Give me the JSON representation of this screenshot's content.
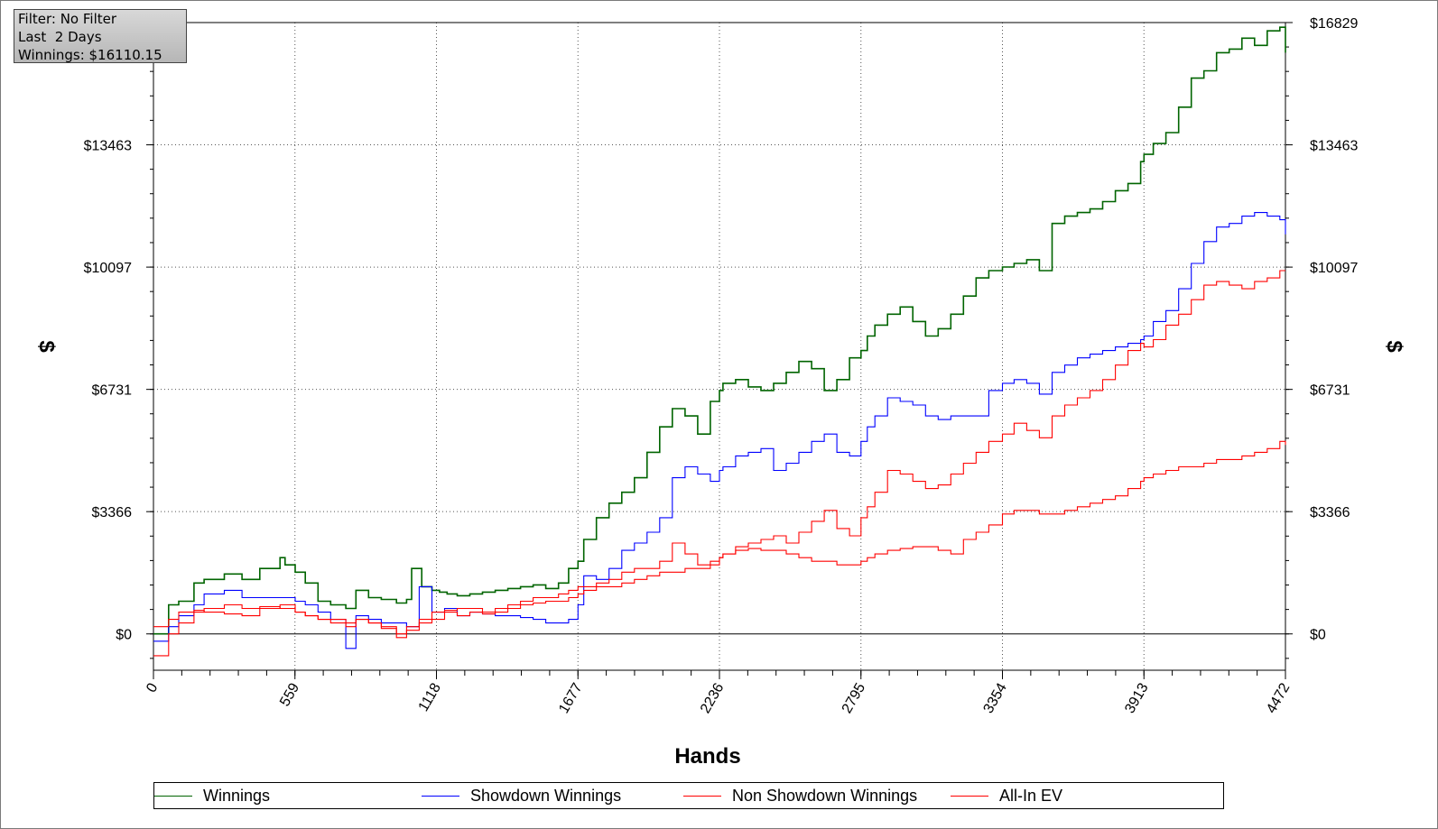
{
  "filter_box": {
    "line1": "Filter: No Filter",
    "line2": "Last  2 Days",
    "line3": "Winnings: $16110.15"
  },
  "chart_data": {
    "type": "line",
    "title": "",
    "xlabel": "Hands",
    "ylabel": "$",
    "xlim": [
      0,
      4472
    ],
    "ylim": [
      -1000,
      16829
    ],
    "x_ticks": [
      "0",
      "559",
      "1118",
      "1677",
      "2236",
      "2795",
      "3354",
      "3913",
      "4472"
    ],
    "y_ticks": [
      "$0",
      "$3366",
      "$6731",
      "$10097",
      "$13463",
      "$16829"
    ],
    "grid": true,
    "legend_placement": "bottom",
    "series": [
      {
        "name": "Winnings",
        "color": "#006400",
        "x": [
          0,
          60,
          100,
          160,
          200,
          280,
          350,
          420,
          500,
          520,
          560,
          600,
          650,
          700,
          760,
          800,
          850,
          900,
          960,
          1000,
          1020,
          1060,
          1100,
          1130,
          1160,
          1200,
          1250,
          1300,
          1350,
          1400,
          1450,
          1500,
          1550,
          1600,
          1640,
          1677,
          1700,
          1750,
          1800,
          1850,
          1900,
          1950,
          2000,
          2050,
          2100,
          2150,
          2200,
          2236,
          2250,
          2300,
          2350,
          2400,
          2450,
          2500,
          2550,
          2600,
          2650,
          2700,
          2750,
          2795,
          2820,
          2850,
          2900,
          2950,
          3000,
          3050,
          3100,
          3150,
          3200,
          3250,
          3300,
          3354,
          3400,
          3450,
          3500,
          3550,
          3600,
          3650,
          3700,
          3750,
          3800,
          3850,
          3900,
          3913,
          3950,
          4000,
          4050,
          4100,
          4150,
          4200,
          4250,
          4300,
          4350,
          4400,
          4450,
          4472
        ],
        "values": [
          0,
          800,
          900,
          1400,
          1500,
          1650,
          1500,
          1800,
          2100,
          1900,
          1700,
          1400,
          900,
          800,
          700,
          1200,
          1000,
          950,
          850,
          950,
          1800,
          1300,
          1200,
          1150,
          1100,
          1050,
          1100,
          1150,
          1200,
          1250,
          1300,
          1350,
          1250,
          1400,
          1800,
          2000,
          2600,
          3200,
          3600,
          3900,
          4300,
          5000,
          5700,
          6200,
          6000,
          5500,
          6400,
          6700,
          6900,
          7000,
          6800,
          6700,
          6900,
          7200,
          7500,
          7300,
          6700,
          7000,
          7600,
          7800,
          8200,
          8500,
          8800,
          9000,
          8600,
          8200,
          8400,
          8800,
          9300,
          9800,
          10000,
          10100,
          10200,
          10300,
          10000,
          11300,
          11500,
          11600,
          11700,
          11900,
          12200,
          12400,
          13000,
          13200,
          13500,
          13800,
          14500,
          15300,
          15500,
          16000,
          16100,
          16400,
          16200,
          16600,
          16700,
          16000
        ]
      },
      {
        "name": "Showdown Winnings",
        "color": "#0000ff",
        "x": [
          0,
          60,
          100,
          160,
          200,
          280,
          350,
          420,
          500,
          560,
          600,
          650,
          700,
          760,
          800,
          850,
          900,
          960,
          1000,
          1050,
          1100,
          1150,
          1200,
          1250,
          1300,
          1350,
          1400,
          1450,
          1500,
          1550,
          1600,
          1640,
          1677,
          1700,
          1750,
          1800,
          1850,
          1900,
          1950,
          2000,
          2050,
          2100,
          2150,
          2200,
          2236,
          2250,
          2300,
          2350,
          2400,
          2450,
          2500,
          2550,
          2600,
          2650,
          2700,
          2750,
          2795,
          2820,
          2850,
          2900,
          2950,
          3000,
          3050,
          3100,
          3150,
          3200,
          3250,
          3300,
          3354,
          3400,
          3450,
          3500,
          3550,
          3600,
          3650,
          3700,
          3750,
          3800,
          3850,
          3900,
          3913,
          3950,
          4000,
          4050,
          4100,
          4150,
          4200,
          4250,
          4300,
          4350,
          4400,
          4450,
          4472
        ],
        "values": [
          -200,
          200,
          500,
          800,
          1100,
          1200,
          1000,
          1000,
          1000,
          900,
          800,
          600,
          400,
          -400,
          500,
          400,
          300,
          300,
          200,
          1300,
          600,
          700,
          500,
          600,
          550,
          500,
          500,
          450,
          400,
          300,
          300,
          400,
          800,
          1600,
          1500,
          1800,
          2300,
          2500,
          2800,
          3200,
          4300,
          4600,
          4400,
          4200,
          4500,
          4600,
          4900,
          5000,
          5100,
          4500,
          4700,
          5000,
          5300,
          5500,
          5000,
          4900,
          5300,
          5700,
          6000,
          6500,
          6400,
          6300,
          6000,
          5900,
          6000,
          6000,
          6000,
          6700,
          6900,
          7000,
          6900,
          6600,
          7200,
          7400,
          7600,
          7700,
          7800,
          7900,
          8000,
          8100,
          8200,
          8600,
          8900,
          9500,
          10200,
          10800,
          11200,
          11300,
          11500,
          11600,
          11500,
          11400,
          11000
        ]
      },
      {
        "name": "Non Showdown Winnings",
        "color": "#ff0000",
        "x": [
          0,
          60,
          100,
          160,
          200,
          280,
          350,
          420,
          500,
          560,
          600,
          650,
          700,
          760,
          800,
          850,
          900,
          960,
          1000,
          1050,
          1100,
          1150,
          1200,
          1250,
          1300,
          1350,
          1400,
          1450,
          1500,
          1550,
          1600,
          1640,
          1677,
          1700,
          1750,
          1800,
          1850,
          1900,
          1950,
          2000,
          2050,
          2100,
          2150,
          2200,
          2236,
          2250,
          2300,
          2350,
          2400,
          2450,
          2500,
          2550,
          2600,
          2650,
          2700,
          2750,
          2795,
          2820,
          2850,
          2900,
          2950,
          3000,
          3050,
          3100,
          3150,
          3200,
          3250,
          3300,
          3354,
          3400,
          3450,
          3500,
          3550,
          3600,
          3650,
          3700,
          3750,
          3800,
          3850,
          3900,
          3913,
          3950,
          4000,
          4050,
          4100,
          4150,
          4200,
          4250,
          4300,
          4350,
          4400,
          4450,
          4472
        ],
        "values": [
          200,
          400,
          600,
          650,
          600,
          550,
          500,
          700,
          800,
          600,
          500,
          400,
          300,
          200,
          400,
          300,
          200,
          -100,
          100,
          300,
          400,
          600,
          500,
          600,
          550,
          700,
          800,
          900,
          1000,
          1000,
          1100,
          1200,
          1300,
          1300,
          1400,
          1500,
          1700,
          1800,
          1800,
          2000,
          2500,
          2200,
          1900,
          2000,
          2100,
          2200,
          2400,
          2500,
          2600,
          2700,
          2500,
          2800,
          3100,
          3400,
          2900,
          2700,
          3200,
          3500,
          3900,
          4500,
          4400,
          4200,
          4000,
          4100,
          4400,
          4700,
          5000,
          5300,
          5500,
          5800,
          5600,
          5400,
          6000,
          6300,
          6500,
          6700,
          7000,
          7400,
          7800,
          8000,
          7900,
          8100,
          8500,
          8800,
          9200,
          9600,
          9700,
          9600,
          9500,
          9700,
          9800,
          10000,
          10000
        ]
      },
      {
        "name": "All-In EV",
        "color": "#ff0000",
        "x": [
          0,
          60,
          100,
          160,
          200,
          280,
          350,
          420,
          500,
          560,
          600,
          650,
          700,
          760,
          800,
          850,
          900,
          960,
          1000,
          1050,
          1100,
          1150,
          1200,
          1250,
          1300,
          1350,
          1400,
          1450,
          1500,
          1550,
          1600,
          1640,
          1677,
          1700,
          1750,
          1800,
          1850,
          1900,
          1950,
          2000,
          2050,
          2100,
          2150,
          2200,
          2236,
          2250,
          2300,
          2350,
          2400,
          2450,
          2500,
          2550,
          2600,
          2650,
          2700,
          2750,
          2795,
          2820,
          2850,
          2900,
          2950,
          3000,
          3050,
          3100,
          3150,
          3200,
          3250,
          3300,
          3354,
          3400,
          3450,
          3500,
          3550,
          3600,
          3650,
          3700,
          3750,
          3800,
          3850,
          3900,
          3913,
          3950,
          4000,
          4050,
          4100,
          4150,
          4200,
          4250,
          4300,
          4350,
          4400,
          4450,
          4472
        ],
        "values": [
          -600,
          0,
          300,
          600,
          700,
          800,
          700,
          750,
          700,
          600,
          500,
          400,
          400,
          300,
          400,
          300,
          150,
          0,
          200,
          400,
          600,
          650,
          700,
          700,
          600,
          600,
          700,
          800,
          850,
          900,
          900,
          1000,
          1100,
          1200,
          1300,
          1300,
          1400,
          1500,
          1600,
          1700,
          1700,
          1800,
          1800,
          1900,
          2100,
          2200,
          2300,
          2350,
          2300,
          2300,
          2200,
          2100,
          2000,
          2000,
          1900,
          1900,
          2000,
          2100,
          2200,
          2300,
          2350,
          2400,
          2400,
          2300,
          2200,
          2600,
          2800,
          3000,
          3300,
          3400,
          3400,
          3300,
          3300,
          3400,
          3500,
          3600,
          3700,
          3800,
          4000,
          4200,
          4300,
          4400,
          4500,
          4600,
          4600,
          4700,
          4800,
          4800,
          4900,
          5000,
          5100,
          5300,
          5200
        ]
      }
    ]
  }
}
